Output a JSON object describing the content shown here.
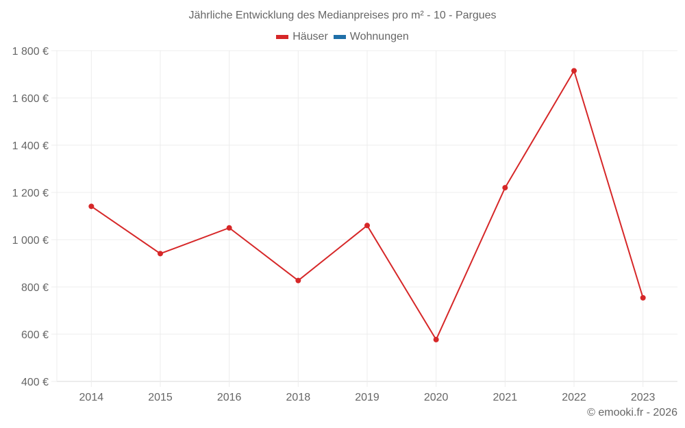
{
  "chart_data": {
    "type": "line",
    "title": "Jährliche Entwicklung des Medianpreises pro m² - 10 - Pargues",
    "categories": [
      "2014",
      "2015",
      "2016",
      "2018",
      "2019",
      "2020",
      "2021",
      "2022",
      "2023"
    ],
    "series": [
      {
        "name": "Häuser",
        "color": "#d62728",
        "values": [
          1141,
          941,
          1050,
          827,
          1060,
          577,
          1220,
          1715,
          754
        ]
      },
      {
        "name": "Wohnungen",
        "color": "#1f6fa8",
        "values": []
      }
    ],
    "xlabel": "",
    "ylabel": "",
    "ylim": [
      400,
      1800
    ],
    "yticks": [
      400,
      600,
      800,
      1000,
      1200,
      1400,
      1600,
      1800
    ],
    "ytick_labels": [
      "400 €",
      "600 €",
      "800 €",
      "1 000 €",
      "1 200 €",
      "1 400 €",
      "1 600 €",
      "1 800 €"
    ],
    "grid": true,
    "legend_position": "top"
  },
  "legend": [
    {
      "label": "Häuser",
      "color": "#d62728"
    },
    {
      "label": "Wohnungen",
      "color": "#1f6fa8"
    }
  ],
  "credit": "© emooki.fr - 2026"
}
